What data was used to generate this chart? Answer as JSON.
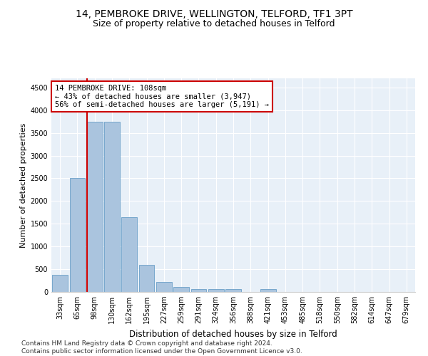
{
  "title": "14, PEMBROKE DRIVE, WELLINGTON, TELFORD, TF1 3PT",
  "subtitle": "Size of property relative to detached houses in Telford",
  "xlabel": "Distribution of detached houses by size in Telford",
  "ylabel": "Number of detached properties",
  "categories": [
    "33sqm",
    "65sqm",
    "98sqm",
    "130sqm",
    "162sqm",
    "195sqm",
    "227sqm",
    "259sqm",
    "291sqm",
    "324sqm",
    "356sqm",
    "388sqm",
    "421sqm",
    "453sqm",
    "485sqm",
    "518sqm",
    "550sqm",
    "582sqm",
    "614sqm",
    "647sqm",
    "679sqm"
  ],
  "values": [
    370,
    2500,
    3750,
    3750,
    1640,
    590,
    225,
    105,
    60,
    55,
    55,
    0,
    55,
    0,
    0,
    0,
    0,
    0,
    0,
    0,
    0
  ],
  "bar_color": "#aac4de",
  "bar_edge_color": "#6a9fc8",
  "vline_color": "#cc0000",
  "vline_x_index": 2,
  "annotation_line1": "14 PEMBROKE DRIVE: 108sqm",
  "annotation_line2": "← 43% of detached houses are smaller (3,947)",
  "annotation_line3": "56% of semi-detached houses are larger (5,191) →",
  "annotation_box_color": "#ffffff",
  "annotation_box_edge": "#cc0000",
  "ylim": [
    0,
    4700
  ],
  "yticks": [
    0,
    500,
    1000,
    1500,
    2000,
    2500,
    3000,
    3500,
    4000,
    4500
  ],
  "bg_color": "#e8f0f8",
  "grid_color": "#ffffff",
  "footer": "Contains HM Land Registry data © Crown copyright and database right 2024.\nContains public sector information licensed under the Open Government Licence v3.0.",
  "title_fontsize": 10,
  "subtitle_fontsize": 9,
  "xlabel_fontsize": 8.5,
  "ylabel_fontsize": 8,
  "tick_fontsize": 7,
  "footer_fontsize": 6.5,
  "ann_fontsize": 7.5
}
